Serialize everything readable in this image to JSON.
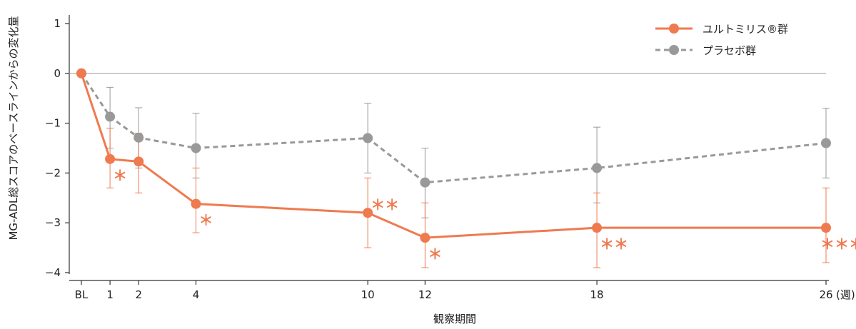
{
  "chart_data": {
    "type": "line",
    "xlabel": "観察期間",
    "ylabel": "MG-ADL総スコアのベースラインからの変化量",
    "x_unit": "(週)",
    "x": [
      0,
      1,
      2,
      4,
      10,
      12,
      18,
      26
    ],
    "x_tick_labels": [
      "BL",
      "1",
      "2",
      "4",
      "10",
      "12",
      "18",
      "26"
    ],
    "ylim": [
      -4,
      1
    ],
    "y_ticks": [
      1,
      0,
      -1,
      -2,
      -3,
      -4
    ],
    "y_tick_labels": [
      "1",
      "0",
      "−1",
      "−2",
      "−3",
      "−4"
    ],
    "legend_position": "top-right",
    "series": [
      {
        "name": "ユルトミリス®群",
        "color": "#ef7a4f",
        "line_style": "solid",
        "values": [
          0,
          -1.72,
          -1.77,
          -2.62,
          -2.8,
          -3.3,
          -3.1,
          -3.1
        ],
        "err_upper": [
          null,
          -1.1,
          -1.2,
          -1.9,
          -2.1,
          -2.6,
          -2.4,
          -2.3
        ],
        "err_lower": [
          null,
          -2.3,
          -2.4,
          -3.2,
          -3.5,
          -3.9,
          -3.9,
          -3.8
        ],
        "significance": [
          null,
          "＊",
          null,
          "＊",
          "＊＊",
          "＊",
          "＊＊",
          "＊＊＊"
        ]
      },
      {
        "name": "プラセボ群",
        "color": "#999999",
        "line_style": "dashed",
        "values": [
          0,
          -0.87,
          -1.29,
          -1.5,
          -1.3,
          -2.19,
          -1.9,
          -1.4
        ],
        "err_upper": [
          null,
          -0.28,
          -0.69,
          -0.8,
          -0.6,
          -1.5,
          -1.08,
          -0.7
        ],
        "err_lower": [
          null,
          -1.5,
          -1.9,
          -2.1,
          -2.0,
          -2.9,
          -2.6,
          -2.1
        ],
        "significance": [
          null,
          null,
          null,
          null,
          null,
          null,
          null,
          null
        ]
      }
    ]
  }
}
